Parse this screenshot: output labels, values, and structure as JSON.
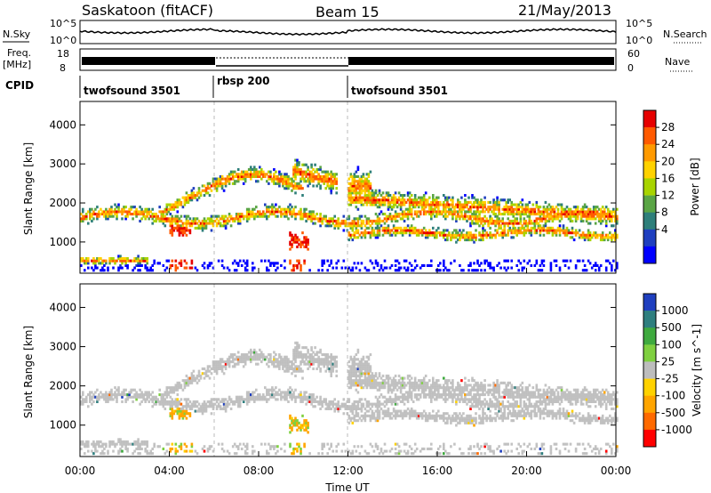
{
  "header": {
    "station": "Saskatoon (fitACF)",
    "beam": "Beam 15",
    "date": "21/May/2013"
  },
  "noise_panel": {
    "left_label": "N.Sky",
    "right_label": "N.Search",
    "left_ticks": [
      "10^5",
      "10^0"
    ],
    "right_ticks": [
      "10^5",
      "10^0"
    ]
  },
  "freq_panel": {
    "left_label_1": "Freq.",
    "left_label_2": "[MHz]",
    "right_label": "Nave",
    "left_ticks": [
      "18",
      "8"
    ],
    "right_ticks": [
      "60",
      "0"
    ]
  },
  "cpid": {
    "label": "CPID",
    "segments": [
      {
        "name": "twofsound 3501",
        "start": 0,
        "end": 6
      },
      {
        "name": "rbsp 200",
        "start": 6,
        "end": 12
      },
      {
        "name": "twofsound 3501",
        "start": 12,
        "end": 24
      }
    ]
  },
  "power_colorbar": {
    "label": "Power [dB]",
    "ticks": [
      "28",
      "24",
      "20",
      "16",
      "12",
      "8",
      "4"
    ],
    "colors": [
      "#e60000",
      "#ff5a00",
      "#ff9a00",
      "#ffd200",
      "#a8d400",
      "#5aa545",
      "#2e7f7a",
      "#1f3fbf",
      "#0000ff"
    ]
  },
  "velocity_colorbar": {
    "label": "Velocity [m s^-1]",
    "ticks": [
      "1000",
      "500",
      "100",
      "25",
      "-25",
      "-100",
      "-500",
      "-1000"
    ],
    "colors": [
      "#1f3fbf",
      "#2f7f7f",
      "#3faa3f",
      "#7fd040",
      "#bdbdbd",
      "#ffd200",
      "#ffa500",
      "#ff6a00",
      "#ff0000"
    ]
  },
  "chart_data": [
    {
      "type": "heatmap",
      "name": "power",
      "ylabel": "Slant Range [km]",
      "xlim": [
        0,
        24
      ],
      "ylim": [
        200,
        4600
      ],
      "yticks": [
        1000,
        2000,
        3000,
        4000
      ],
      "xticks": [
        "00:00",
        "04:00",
        "08:00",
        "12:00",
        "16:00",
        "20:00",
        "00:00"
      ],
      "xlabel": "Time UT"
    },
    {
      "type": "heatmap",
      "name": "velocity",
      "ylabel": "Slant Range [km]",
      "xlim": [
        0,
        24
      ],
      "ylim": [
        200,
        4600
      ],
      "yticks": [
        1000,
        2000,
        3000,
        4000
      ],
      "xticks": [
        "00:00",
        "04:00",
        "08:00",
        "12:00",
        "16:00",
        "20:00",
        "00:00"
      ],
      "xlabel": "Time UT"
    }
  ]
}
